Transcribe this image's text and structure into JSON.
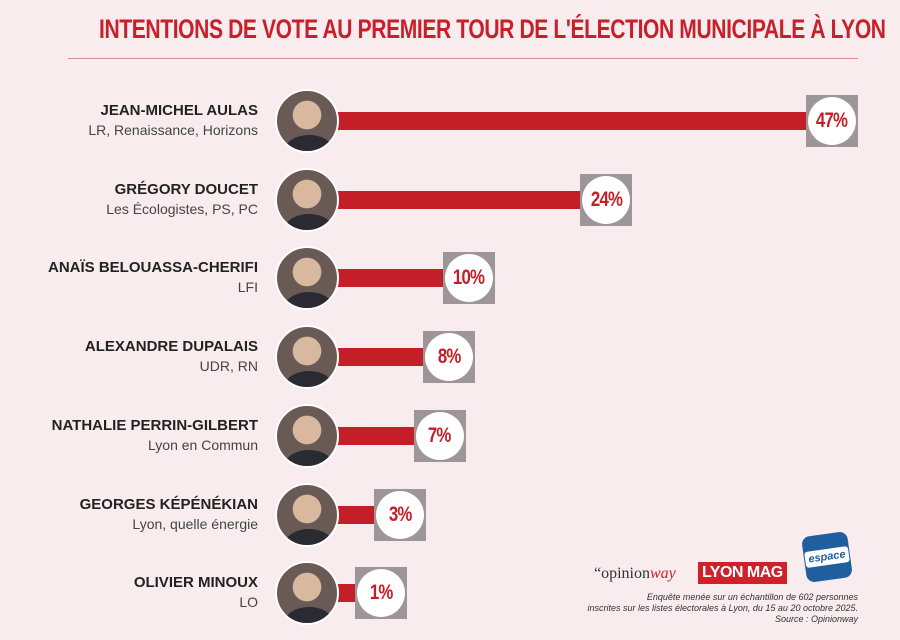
{
  "chart_data": {
    "type": "bar",
    "orientation": "horizontal",
    "title": "INTENTIONS DE VOTE AU PREMIER TOUR DE L'ÉLECTION MUNICIPALE À LYON",
    "categories": [
      "JEAN-MICHEL AULAS",
      "GRÉGORY DOUCET",
      "ANAÏS BELOUASSA-CHERIFI",
      "ALEXANDRE DUPALAIS",
      "NATHALIE PERRIN-GILBERT",
      "GEORGES KÉPÉNÉKIAN",
      "OLIVIER MINOUX"
    ],
    "parties": [
      "LR, Renaissance, Horizons",
      "Les Écologistes, PS, PC",
      "LFI",
      "UDR, RN",
      "Lyon en Commun",
      "Lyon, quelle énergie",
      "LO"
    ],
    "values": [
      47,
      24,
      10,
      8,
      7,
      3,
      1
    ],
    "labels": [
      "47%",
      "24%",
      "10%",
      "8%",
      "7%",
      "3%",
      "1%"
    ],
    "unit": "%",
    "bar_color": "#c41e28"
  },
  "footer": {
    "logos": [
      "“opinion",
      "way",
      "LYON MAG",
      "espace"
    ],
    "note": [
      "Enquête menée sur un échantillon de 602 personnes",
      "inscrites sur les listes électorales à Lyon, du 15 au 20 octobre 2025.",
      "Source : Opinionway"
    ]
  }
}
